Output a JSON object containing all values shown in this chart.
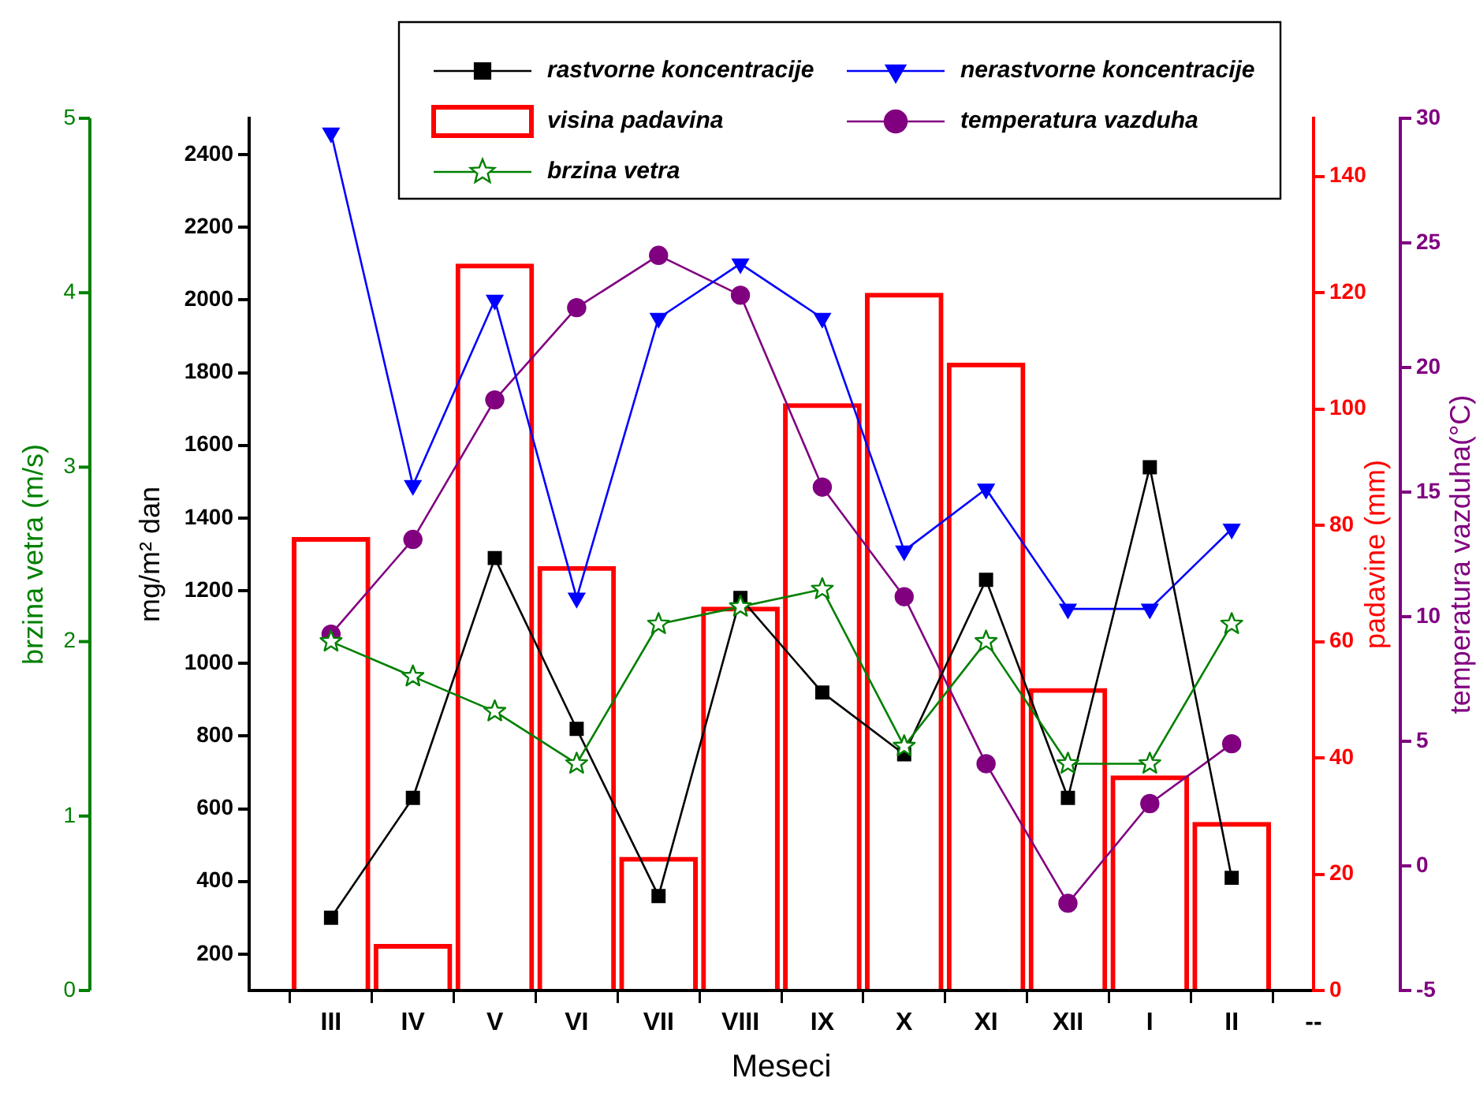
{
  "chart_data": [
    {
      "type": "line",
      "xlabel": "Meseci",
      "ylabel": "mg/m² dan",
      "y2label": "padavine (mm)",
      "y3label": "temperatura vazduha(°C)",
      "categories": [
        null,
        "III",
        "IV",
        "V",
        "VI",
        "VII",
        "VIII",
        "IX",
        "X",
        "XI",
        "XII",
        "I",
        "II",
        "--"
      ],
      "series": [
        {
          "name": "rastvorne koncentracije",
          "color": "#000000",
          "marker": "square",
          "values": [
            null,
            300,
            630,
            1290,
            820,
            360,
            1180,
            920,
            750,
            1230,
            630,
            1540,
            410,
            null
          ]
        },
        {
          "name": "nerastvorne koncentracije",
          "color": "#0000ff",
          "marker": "triangle",
          "values": [
            null,
            2460,
            1490,
            2000,
            1180,
            1950,
            2100,
            1950,
            1310,
            1480,
            1150,
            1150,
            1370,
            null
          ]
        },
        {
          "name": "visina padavina",
          "type": "bar",
          "axis": "y2",
          "color": "#ff0000",
          "values": [
            null,
            78,
            8,
            125,
            73,
            23,
            66,
            101,
            120,
            108,
            52,
            37,
            29,
            null
          ]
        },
        {
          "name": "temperatura vazduha",
          "color": "#800080",
          "marker": "circle",
          "axis": "y3",
          "values": [
            null,
            9.3,
            13.1,
            18.7,
            22.4,
            24.5,
            22.9,
            15.2,
            10.8,
            4.1,
            -1.5,
            2.5,
            4.9,
            null
          ]
        }
      ],
      "ylim": [
        100,
        2500
      ],
      "yticks": [
        200,
        400,
        600,
        800,
        1000,
        1200,
        1400,
        1600,
        1800,
        2000,
        2200,
        2400
      ],
      "y2lim": [
        0,
        150
      ],
      "y2ticks": [
        0,
        20,
        40,
        60,
        80,
        100,
        120,
        140
      ],
      "y3lim": [
        -5,
        30
      ],
      "y3ticks": [
        -5,
        0,
        5,
        10,
        15,
        20,
        25,
        30
      ],
      "grid": false,
      "legend": "top",
      "line_style": "solid"
    },
    {
      "type": "line",
      "ylabel": "brzina vetra (m/s)",
      "categories": [
        null,
        null,
        null,
        null,
        null,
        null,
        null,
        null,
        null,
        null,
        null,
        null,
        null,
        null
      ],
      "series": [
        {
          "name": "brzina vetra",
          "color": "#008000",
          "marker": "star",
          "values": [
            null,
            2.0,
            1.8,
            1.6,
            1.3,
            2.1,
            2.2,
            2.3,
            1.4,
            2.0,
            1.3,
            1.3,
            2.1,
            null
          ]
        }
      ],
      "ylim": [
        0,
        5
      ],
      "yticks": [
        0,
        1,
        2,
        3,
        4,
        5
      ],
      "tick_labels": "y",
      "grid": false,
      "legend": "top",
      "line_style": "solid"
    }
  ]
}
